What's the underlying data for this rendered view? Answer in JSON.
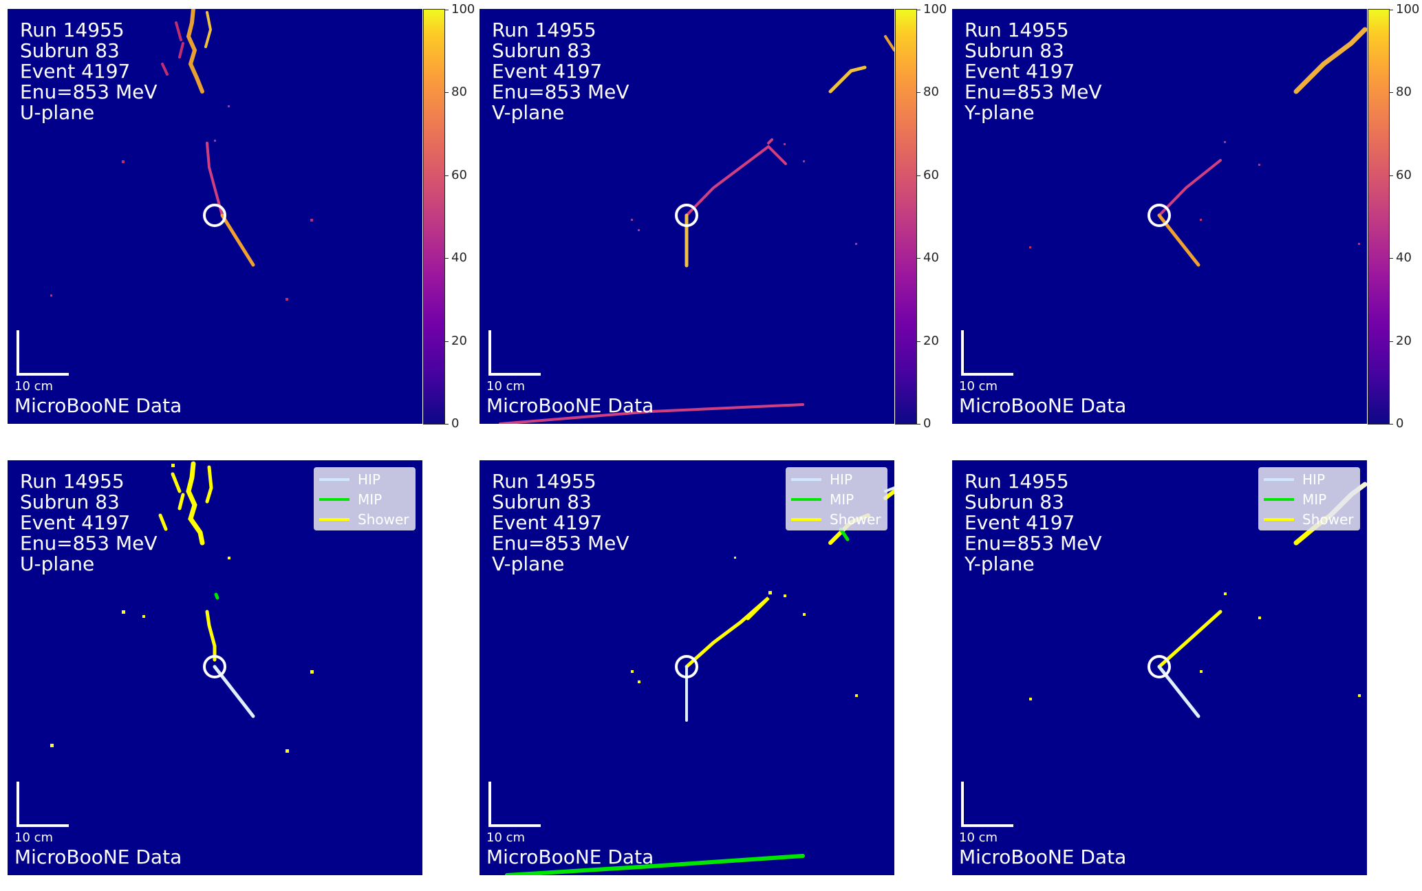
{
  "event": {
    "run": "Run 14955",
    "subrun": "Subrun 83",
    "event": "Event 4197",
    "enu": "Enu=853 MeV"
  },
  "planes": [
    "U-plane",
    "V-plane",
    "Y-plane"
  ],
  "scale_label": "10 cm",
  "data_label": "MicroBooNE Data",
  "colorbar": {
    "ticks": [
      "100",
      "80",
      "60",
      "40",
      "20",
      "0"
    ],
    "colormap": "plasma",
    "range": [
      0,
      100
    ]
  },
  "legend": {
    "items": [
      {
        "label": "HIP",
        "color": "#cfe8ff"
      },
      {
        "label": "MIP",
        "color": "#00e600"
      },
      {
        "label": "Shower",
        "color": "#ffff00"
      }
    ]
  },
  "colors": {
    "background": "#00008b",
    "vertex": "#ffffff"
  }
}
